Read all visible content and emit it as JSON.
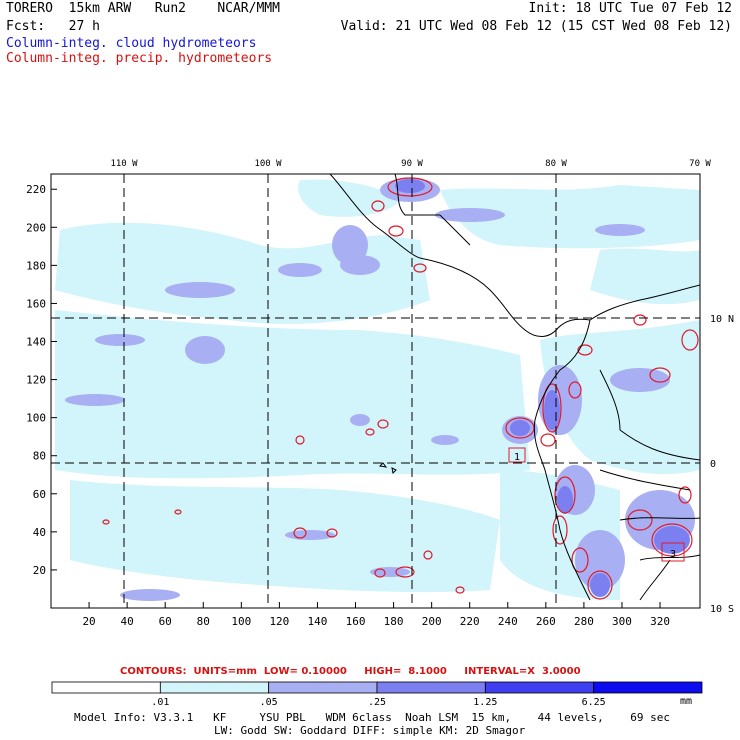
{
  "header": {
    "left_line1": "TORERO  15km ARW   Run2    NCAR/MMM",
    "left_line2": "Fcst:   27 h",
    "right_line1": "Init: 18 UTC Tue 07 Feb 12",
    "right_line2": "Valid: 21 UTC Wed 08 Feb 12 (15 CST Wed 08 Feb 12)",
    "legend_cloud": "Column-integ. cloud hydrometeors",
    "legend_precip": "Column-integ. precip. hydrometeors"
  },
  "map": {
    "top_lon_labels": [
      "110 W",
      "100 W",
      "90 W",
      "80 W",
      "70 W"
    ],
    "right_lat_labels": [
      "10 N",
      "0",
      "10 S"
    ],
    "y_ticks": [
      "220",
      "200",
      "180",
      "160",
      "140",
      "120",
      "100",
      "80",
      "60",
      "40",
      "20"
    ],
    "x_ticks": [
      "20",
      "40",
      "60",
      "80",
      "100",
      "120",
      "140",
      "160",
      "180",
      "200",
      "220",
      "240",
      "260",
      "280",
      "300",
      "320"
    ],
    "box_label_low": "1",
    "box_label_right": "3",
    "colors": {
      "ocean": "#ffffff",
      "cloud_light": "#d2f4fb",
      "cloud_mid": "#a9aff3",
      "cloud_strong": "#7b7ff0",
      "precip_contour": "#e01a2a",
      "coast": "#000000"
    }
  },
  "contours_line": {
    "text": "CONTOURS:  UNITS=mm  LOW= 0.10000     HIGH=  8.1000     INTERVAL=X  3.0000"
  },
  "colorbar": {
    "labels": [
      ".01",
      ".05",
      ".25",
      "1.25",
      "6.25"
    ],
    "units": "mm",
    "colors": [
      "#ffffff",
      "#d2f4fb",
      "#a9aff3",
      "#7b7ff0",
      "#3f3fef",
      "#0c0cee"
    ]
  },
  "footer": {
    "line1": "Model Info: V3.3.1   KF     YSU PBL   WDM 6class  Noah LSM  15 km,    44 levels,    69 sec",
    "line2": "LW: Godd SW: Goddard DIFF: simple KM: 2D Smagor"
  }
}
